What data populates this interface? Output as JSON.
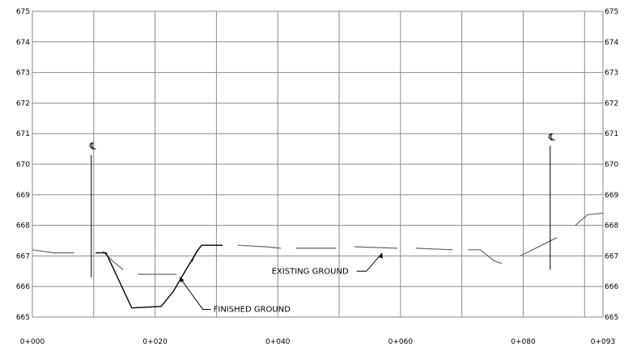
{
  "chart_data": {
    "type": "line",
    "title": "",
    "xlabel": "",
    "ylabel": "",
    "xlim": [
      0,
      93
    ],
    "ylim": [
      665,
      675
    ],
    "grid": true,
    "x_ticks": [
      {
        "value": 0,
        "label": "0+000"
      },
      {
        "value": 10,
        "label": ""
      },
      {
        "value": 20,
        "label": "0+020"
      },
      {
        "value": 30,
        "label": ""
      },
      {
        "value": 40,
        "label": "0+040"
      },
      {
        "value": 50,
        "label": ""
      },
      {
        "value": 60,
        "label": "0+060"
      },
      {
        "value": 70,
        "label": ""
      },
      {
        "value": 80,
        "label": "0+080"
      },
      {
        "value": 90,
        "label": ""
      },
      {
        "value": 93,
        "label": "0+093"
      }
    ],
    "y_ticks": [
      665,
      666,
      667,
      668,
      669,
      670,
      671,
      672,
      673,
      674,
      675
    ],
    "series": [
      {
        "name": "EXISTING GROUND",
        "style": "dashed",
        "segments": [
          [
            [
              0,
              667.2
            ],
            [
              3.5,
              667.1
            ],
            [
              6.8,
              667.1
            ]
          ],
          [
            [
              11.5,
              667.15
            ],
            [
              13.0,
              666.85
            ],
            [
              14.8,
              666.55
            ]
          ],
          [
            [
              17.2,
              666.4
            ],
            [
              23.5,
              666.4
            ]
          ],
          [
            [
              26.0,
              666.8
            ],
            [
              26.6,
              667.1
            ],
            [
              27.2,
              667.25
            ]
          ],
          [
            [
              33.5,
              667.35
            ],
            [
              38.0,
              667.3
            ],
            [
              40.5,
              667.25
            ]
          ],
          [
            [
              43.0,
              667.25
            ],
            [
              49.5,
              667.25
            ]
          ],
          [
            [
              52.5,
              667.3
            ],
            [
              59.5,
              667.25
            ]
          ],
          [
            [
              62.5,
              667.25
            ],
            [
              68.5,
              667.2
            ]
          ],
          [
            [
              71.0,
              667.2
            ],
            [
              73.0,
              667.2
            ],
            [
              75.2,
              666.85
            ],
            [
              76.5,
              666.75
            ]
          ],
          [
            [
              79.5,
              667.0
            ],
            [
              83.0,
              667.35
            ],
            [
              85.5,
              667.6
            ]
          ],
          [
            [
              88.5,
              668.0
            ],
            [
              90.5,
              668.35
            ],
            [
              93.0,
              668.4
            ]
          ]
        ]
      },
      {
        "name": "FINISHED GROUND",
        "style": "solid",
        "segments": [
          [
            [
              10.3,
              667.1
            ],
            [
              12.0,
              667.1
            ],
            [
              16.2,
              665.3
            ],
            [
              21.0,
              665.35
            ],
            [
              23.0,
              665.85
            ],
            [
              25.2,
              666.6
            ],
            [
              27.0,
              667.2
            ],
            [
              27.6,
              667.35
            ],
            [
              31.0,
              667.35
            ]
          ]
        ]
      }
    ],
    "markers": [
      {
        "label": "℄",
        "x": 9.6,
        "y_top": 670.3,
        "y_bottom": 666.3
      },
      {
        "label": "℄",
        "x": 84.4,
        "y_top": 670.6,
        "y_bottom": 666.55
      }
    ],
    "annotations": [
      {
        "text": "EXISTING GROUND",
        "x": 39.0,
        "y": 666.5,
        "points_to": [
          57.0,
          667.25
        ]
      },
      {
        "text": "FINISHED GROUND",
        "x": 29.5,
        "y": 665.25,
        "points_to": [
          24.0,
          666.3
        ]
      }
    ]
  }
}
